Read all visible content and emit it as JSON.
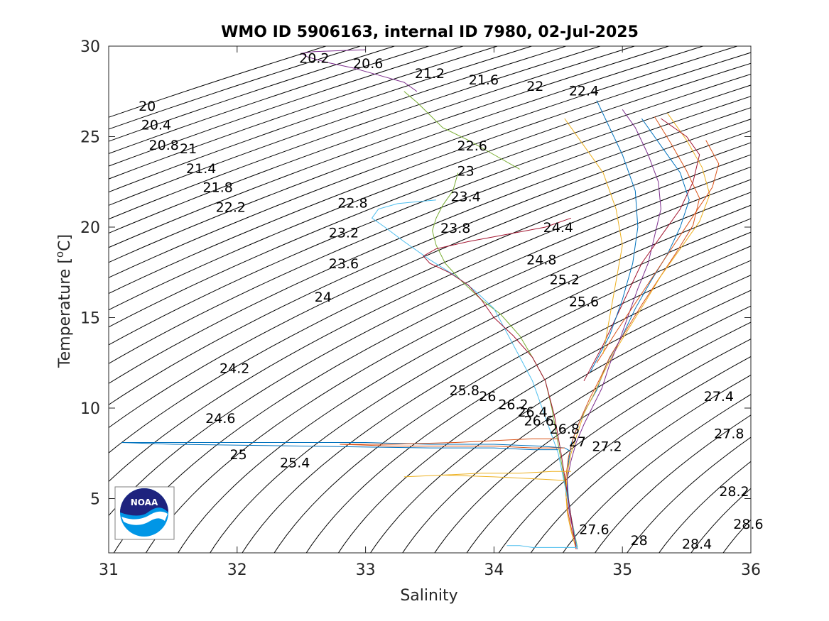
{
  "chart_data": {
    "type": "line",
    "title": "WMO ID 5906163, internal ID 7980, 02-Jul-2025",
    "xlabel": "Salinity",
    "ylabel": "Temperature [°C]",
    "ylabel_parts": {
      "main": "Temperature [",
      "sup": "o",
      "end": "C]"
    },
    "xlim": [
      31,
      36
    ],
    "ylim": [
      2,
      30
    ],
    "xticks": [
      31,
      32,
      33,
      34,
      35,
      36
    ],
    "yticks": [
      5,
      10,
      15,
      20,
      25,
      30
    ],
    "xtick_labels": [
      "31",
      "32",
      "33",
      "34",
      "35",
      "36"
    ],
    "ytick_labels": [
      "5",
      "10",
      "15",
      "20",
      "25",
      "30"
    ],
    "grid": false,
    "legend": "none",
    "contour_field": "density anomaly sigma-theta (kg m-3), contours every 0.2",
    "contour_levels_min": 20.0,
    "contour_levels_max": 29.0,
    "contour_label_values": [
      {
        "text": "20.2",
        "s": 32.6,
        "t": 29.3
      },
      {
        "text": "20.6",
        "s": 33.02,
        "t": 29.0
      },
      {
        "text": "21.2",
        "s": 33.5,
        "t": 28.45
      },
      {
        "text": "21.6",
        "s": 33.92,
        "t": 28.1
      },
      {
        "text": "22",
        "s": 34.32,
        "t": 27.75
      },
      {
        "text": "22.4",
        "s": 34.7,
        "t": 27.5
      },
      {
        "text": "20",
        "s": 31.3,
        "t": 26.65
      },
      {
        "text": "20.4",
        "s": 31.37,
        "t": 25.6
      },
      {
        "text": "20.8",
        "s": 31.43,
        "t": 24.5
      },
      {
        "text": "21",
        "s": 31.62,
        "t": 24.3
      },
      {
        "text": "21.4",
        "s": 31.72,
        "t": 23.2
      },
      {
        "text": "21.8",
        "s": 31.85,
        "t": 22.15
      },
      {
        "text": "22.2",
        "s": 31.95,
        "t": 21.05
      },
      {
        "text": "22.6",
        "s": 33.83,
        "t": 24.45
      },
      {
        "text": "23",
        "s": 33.78,
        "t": 23.05
      },
      {
        "text": "23.4",
        "s": 33.78,
        "t": 21.65
      },
      {
        "text": "22.8",
        "s": 32.9,
        "t": 21.3
      },
      {
        "text": "23.2",
        "s": 32.83,
        "t": 19.65
      },
      {
        "text": "23.8",
        "s": 33.7,
        "t": 19.9
      },
      {
        "text": "24.4",
        "s": 34.5,
        "t": 19.95
      },
      {
        "text": "23.6",
        "s": 32.83,
        "t": 17.95
      },
      {
        "text": "24.8",
        "s": 34.37,
        "t": 18.15
      },
      {
        "text": "25.2",
        "s": 34.55,
        "t": 17.05
      },
      {
        "text": "24",
        "s": 32.67,
        "t": 16.1
      },
      {
        "text": "25.6",
        "s": 34.7,
        "t": 15.85
      },
      {
        "text": "24.2",
        "s": 31.98,
        "t": 12.15
      },
      {
        "text": "25.8",
        "s": 33.77,
        "t": 10.95
      },
      {
        "text": "26",
        "s": 33.95,
        "t": 10.6
      },
      {
        "text": "26.2",
        "s": 34.15,
        "t": 10.15
      },
      {
        "text": "26.4",
        "s": 34.3,
        "t": 9.75
      },
      {
        "text": "27.4",
        "s": 35.75,
        "t": 10.6
      },
      {
        "text": "24.6",
        "s": 31.87,
        "t": 9.4
      },
      {
        "text": "26.6",
        "s": 34.35,
        "t": 9.25
      },
      {
        "text": "26.8",
        "s": 34.55,
        "t": 8.8
      },
      {
        "text": "27.8",
        "s": 35.83,
        "t": 8.55
      },
      {
        "text": "27",
        "s": 34.65,
        "t": 8.1
      },
      {
        "text": "27.2",
        "s": 34.88,
        "t": 7.85
      },
      {
        "text": "25",
        "s": 32.01,
        "t": 7.4
      },
      {
        "text": "25.4",
        "s": 32.45,
        "t": 6.95
      },
      {
        "text": "28.2",
        "s": 35.87,
        "t": 5.35
      },
      {
        "text": "28.6",
        "s": 35.98,
        "t": 3.55
      },
      {
        "text": "27.6",
        "s": 34.78,
        "t": 3.25
      },
      {
        "text": "28",
        "s": 35.13,
        "t": 2.65
      },
      {
        "text": "28.4",
        "s": 35.58,
        "t": 2.45
      }
    ],
    "series_colors": [
      "#0072bd",
      "#d95319",
      "#edb120",
      "#7e2f8e",
      "#77ac30",
      "#4dbeee",
      "#a2142f"
    ],
    "series": [
      {
        "x": [
          34.65,
          34.62,
          34.6,
          34.58,
          34.57,
          34.58,
          34.6,
          34.65,
          34.72,
          34.8,
          34.88,
          35.0,
          35.1,
          35.22,
          35.35,
          35.45,
          35.52,
          35.45,
          35.3,
          35.15
        ],
        "y": [
          2.2,
          3.0,
          4.0,
          5.0,
          6.0,
          7.0,
          8.0,
          9.0,
          10.0,
          11.0,
          12.5,
          14.0,
          15.5,
          17.0,
          18.5,
          20.0,
          21.5,
          23.0,
          24.5,
          26.0
        ]
      },
      {
        "x": [
          34.65,
          34.61,
          34.58,
          34.56,
          34.56,
          34.58,
          34.62,
          34.68,
          34.75,
          34.83,
          34.9,
          35.02,
          35.15,
          35.28,
          35.42,
          35.55,
          35.6,
          35.5,
          35.38,
          35.25
        ],
        "y": [
          2.3,
          3.1,
          4.1,
          5.2,
          6.2,
          7.3,
          8.4,
          9.5,
          10.6,
          11.7,
          12.8,
          14.2,
          15.7,
          17.1,
          18.6,
          20.1,
          21.6,
          23.1,
          24.6,
          26.1
        ]
      },
      {
        "x": [
          34.64,
          34.6,
          34.57,
          34.56,
          34.57,
          34.6,
          34.65,
          34.7,
          34.78,
          34.85,
          34.93,
          35.05,
          35.18,
          35.3,
          35.45,
          35.6,
          35.68,
          35.62,
          35.5,
          35.35
        ],
        "y": [
          2.2,
          3.2,
          4.2,
          5.3,
          6.4,
          7.5,
          8.6,
          9.7,
          10.8,
          11.9,
          13.0,
          14.4,
          15.9,
          17.3,
          18.8,
          20.3,
          21.8,
          23.3,
          24.8,
          26.3
        ]
      },
      {
        "x": [
          34.65,
          34.62,
          34.59,
          34.57,
          34.57,
          34.6,
          34.64,
          34.7,
          34.77,
          34.84,
          34.9,
          34.98,
          35.05,
          35.12,
          35.2,
          35.25,
          35.3,
          35.28,
          35.2,
          35.1,
          35.0
        ],
        "y": [
          2.2,
          3.1,
          4.1,
          5.1,
          6.1,
          7.1,
          8.1,
          9.1,
          10.1,
          11.1,
          12.4,
          13.8,
          15.2,
          16.6,
          18.0,
          19.5,
          21.0,
          22.5,
          24.0,
          25.5,
          26.5
        ]
      },
      {
        "x": [
          34.65,
          34.6,
          34.55,
          34.5,
          34.45,
          34.4,
          34.3,
          34.2,
          34.05,
          33.9,
          33.75,
          33.62,
          33.55,
          33.52,
          33.55,
          33.6,
          33.68,
          33.72
        ],
        "y": [
          2.3,
          4.0,
          6.0,
          8.0,
          10.0,
          11.5,
          12.8,
          14.0,
          15.2,
          16.0,
          17.0,
          18.0,
          19.0,
          19.8,
          20.5,
          21.2,
          22.0,
          23.0
        ]
      },
      {
        "x": [
          34.65,
          34.6,
          34.55,
          34.5,
          34.4,
          34.3,
          34.15,
          34.0,
          33.85,
          33.7,
          33.5,
          33.3,
          33.15,
          33.05,
          33.1,
          33.25,
          33.4,
          33.55
        ],
        "y": [
          2.2,
          4.0,
          5.8,
          7.5,
          9.5,
          11.5,
          13.5,
          15.5,
          16.5,
          17.3,
          18.2,
          19.2,
          20.0,
          20.5,
          21.0,
          21.3,
          21.4,
          21.5
        ]
      },
      {
        "x": [
          34.64,
          34.6,
          34.56,
          34.52,
          34.47,
          34.4,
          34.3,
          34.15,
          34.0,
          33.9,
          33.8,
          33.65,
          33.5,
          33.45,
          33.55,
          33.8,
          34.1,
          34.4,
          34.6
        ],
        "y": [
          2.2,
          4.0,
          5.8,
          7.6,
          9.6,
          11.5,
          12.8,
          14.0,
          15.0,
          16.0,
          16.8,
          17.5,
          18.0,
          18.4,
          18.8,
          19.2,
          19.6,
          20.0,
          20.5
        ]
      },
      {
        "x": [
          34.6,
          34.55,
          34.35,
          34.0,
          33.5,
          33.0,
          32.5,
          32.0,
          31.5,
          31.1,
          31.5,
          32.5,
          33.5,
          34.0,
          34.3,
          34.5
        ],
        "y": [
          7.6,
          7.8,
          7.9,
          8.0,
          8.0,
          8.1,
          8.1,
          8.1,
          8.1,
          8.1,
          8.0,
          7.9,
          7.8,
          7.8,
          7.7,
          7.7
        ]
      },
      {
        "x": [
          34.5,
          34.3,
          34.0,
          33.7,
          33.2,
          32.8,
          33.2,
          33.6,
          34.0,
          34.3,
          34.55
        ],
        "y": [
          8.3,
          8.3,
          8.2,
          8.1,
          8.0,
          8.0,
          7.9,
          7.9,
          7.9,
          7.8,
          7.8
        ]
      },
      {
        "x": [
          34.55,
          34.3,
          34.0,
          33.6,
          33.3,
          33.6,
          33.9,
          34.2,
          34.45,
          34.6
        ],
        "y": [
          6.0,
          6.1,
          6.2,
          6.3,
          6.2,
          6.3,
          6.4,
          6.4,
          6.5,
          6.5
        ]
      },
      {
        "x": [
          33.4,
          33.3,
          33.1,
          32.9,
          32.7,
          32.55,
          32.5,
          32.6,
          32.8,
          33.0
        ],
        "y": [
          27.5,
          28.0,
          28.4,
          28.8,
          29.1,
          29.4,
          29.6,
          29.7,
          29.75,
          29.8
        ]
      },
      {
        "x": [
          34.2,
          34.0,
          33.8,
          33.6,
          33.5,
          33.4,
          33.3
        ],
        "y": [
          23.2,
          24.0,
          24.8,
          25.5,
          26.2,
          26.9,
          27.5
        ]
      },
      {
        "x": [
          34.1,
          34.2,
          34.3,
          34.4,
          34.5,
          34.65
        ],
        "y": [
          2.4,
          2.4,
          2.3,
          2.3,
          2.3,
          2.3
        ]
      },
      {
        "x": [
          34.7,
          34.85,
          34.95,
          35.05,
          35.15,
          35.3,
          35.45,
          35.55,
          35.6,
          35.5,
          35.3
        ],
        "y": [
          11.5,
          13.5,
          15.0,
          16.5,
          18.0,
          19.5,
          21.0,
          22.5,
          24.0,
          25.0,
          26.0
        ]
      },
      {
        "x": [
          34.75,
          34.9,
          35.0,
          35.08,
          35.12,
          35.1,
          35.0,
          34.9,
          34.8
        ],
        "y": [
          12.0,
          14.0,
          16.0,
          18.0,
          20.0,
          22.0,
          24.0,
          25.5,
          27.0
        ]
      },
      {
        "x": [
          34.8,
          34.95,
          35.1,
          35.25,
          35.4,
          35.55,
          35.7,
          35.75,
          35.65
        ],
        "y": [
          12.5,
          14.2,
          15.8,
          17.4,
          19.0,
          20.6,
          22.2,
          23.5,
          24.8
        ]
      },
      {
        "x": [
          34.85,
          34.9,
          34.95,
          35.0,
          34.95,
          34.85,
          34.7,
          34.55
        ],
        "y": [
          13.0,
          15.0,
          17.0,
          19.0,
          21.0,
          23.0,
          24.5,
          26.0
        ]
      }
    ]
  },
  "logo": {
    "text": "NOAA"
  }
}
